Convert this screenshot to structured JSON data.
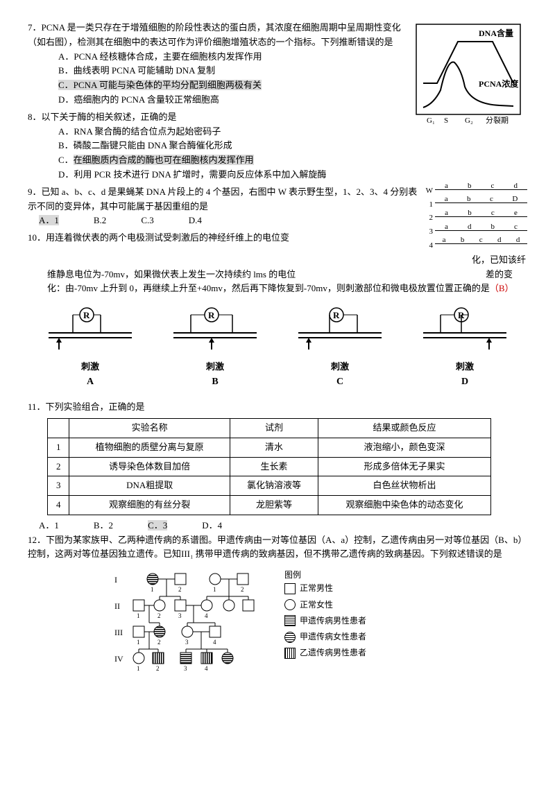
{
  "q7": {
    "num": "7．",
    "text": "PCNA 是一类只存在于增殖细胞的阶段性表达的蛋白质，其浓度在细胞周期中呈周期性变化（如右图），检测其在细胞中的表达可作为评价细胞增殖状态的一个指标。下列推断错误的是",
    "a": "A．PCNA 经核糖体合成，主要在细胞核内发挥作用",
    "b": "B．曲线表明 PCNA 可能辅助 DNA 复制",
    "c": "C．PCNA 可能与染色体的平均分配到细胞两极有关",
    "d": "D．癌细胞内的 PCNA 含量较正常细胞高"
  },
  "chart": {
    "y1_label": "DNA含量",
    "y2_label": "PCNA浓度",
    "x_labels": [
      "G₁",
      "S",
      "G₂",
      "分裂期"
    ]
  },
  "q8": {
    "num": "8．",
    "text": "以下关于酶的相关叙述，正确的是",
    "a": "A．RNA 聚合酶的结合位点为起始密码子",
    "b": "B．磷酸二酯键只能由 DNA 聚合酶催化形成",
    "c": "C．在细胞质内合成的酶也可在细胞核内发挥作用",
    "d": "D．利用 PCR 技术进行 DNA 扩增时，需要向反应体系中加入解旋酶"
  },
  "q9": {
    "num": "9．",
    "text": "已知 a、b、c、d 是果蝇某 DNA 片段上的 4 个基因，右图中 W 表示野生型，1、2、3、4 分别表示不同的变异体，其中可能属于基因重组的是",
    "a": "A．1",
    "b": "B.2",
    "c": "C.3",
    "d": "D.4"
  },
  "genes": {
    "rows": [
      {
        "label": "W",
        "genes": [
          "a",
          "b",
          "c",
          "d"
        ]
      },
      {
        "label": "1",
        "genes": [
          "a",
          "b",
          "c",
          "D"
        ]
      },
      {
        "label": "2",
        "genes": [
          "a",
          "b",
          "c",
          "e"
        ]
      },
      {
        "label": "3",
        "genes": [
          "a",
          "d",
          "b",
          "c"
        ]
      },
      {
        "label": "4",
        "genes": [
          "a",
          "b",
          "c",
          "d",
          "d"
        ]
      }
    ]
  },
  "q10": {
    "num": "10．",
    "text1": "用连着微伏表的两个电极测试受刺激后的神经纤维上的电位变",
    "text1_end": "化，已知该纤",
    "text2": "维静息电位为-70mv，如果微伏表上发生一次持续约 lms 的电位",
    "text2_end": "差的变",
    "text3": "化：由-70mv 上升到 0，再继续上升至+40mv，然后再下降恢复到-70mv，则刺激部位和微电极放置位置正确的是",
    "answer": "（B）",
    "opts": [
      "刺激",
      "刺激",
      "刺激",
      "刺激"
    ],
    "labels": [
      "A",
      "B",
      "C",
      "D"
    ]
  },
  "q11": {
    "num": "11．",
    "text": "下列实验组合，正确的是",
    "headers": [
      "",
      "实验名称",
      "试剂",
      "结果或颜色反应"
    ],
    "rows": [
      [
        "1",
        "植物细胞的质壁分离与复原",
        "清水",
        "液泡缩小，颜色变深"
      ],
      [
        "2",
        "诱导染色体数目加倍",
        "生长素",
        "形成多倍体无子果实"
      ],
      [
        "3",
        "DNA粗提取",
        "氯化钠溶液等",
        "白色丝状物析出"
      ],
      [
        "4",
        "观察细胞的有丝分裂",
        "龙胆紫等",
        "观察细胞中染色体的动态变化"
      ]
    ],
    "a": "A．1",
    "b": "B．2",
    "c": "C．3",
    "d": "D．4"
  },
  "q12": {
    "num": "12．",
    "text": "下图为某家族甲、乙两种遗传病的系谱图。甲遗传病由一对等位基因（A、a）控制，乙遗传病由另一对等位基因（B、b）控制，这两对等位基因独立遗传。已知III₁ 携带甲遗传病的致病基因，但不携带乙遗传病的致病基因。下列叙述错误的是"
  },
  "legend": {
    "title": "图例",
    "items": [
      {
        "label": "正常男性"
      },
      {
        "label": "正常女性"
      },
      {
        "label": "甲遗传病男性患者"
      },
      {
        "label": "甲遗传病女性患者"
      },
      {
        "label": "乙遗传病男性患者"
      }
    ]
  },
  "gens": [
    "I",
    "II",
    "III",
    "IV"
  ]
}
